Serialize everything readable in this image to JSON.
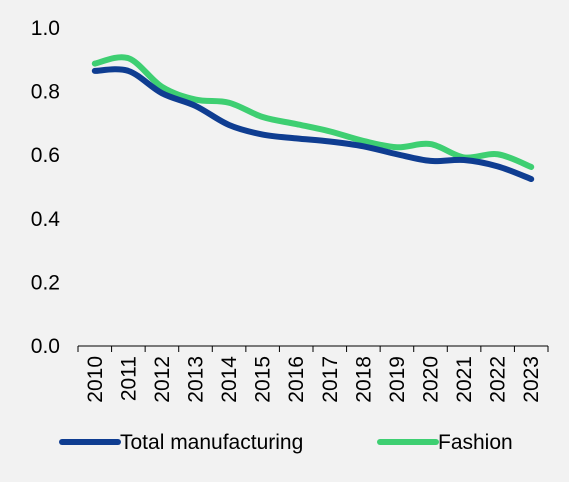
{
  "chart_data": {
    "type": "line",
    "title": "",
    "xlabel": "",
    "ylabel": "",
    "x": [
      "2010",
      "2011",
      "2012",
      "2013",
      "2014",
      "2015",
      "2016",
      "2017",
      "2018",
      "2019",
      "2020",
      "2021",
      "2022",
      "2023"
    ],
    "ylim": [
      0.0,
      1.0
    ],
    "yticks": [
      "0.0",
      "0.2",
      "0.4",
      "0.6",
      "0.8",
      "1.0"
    ],
    "grid": false,
    "legend_position": "bottom",
    "series": [
      {
        "name": "Total manufacturing",
        "color": "#0f3d91",
        "values": [
          0.865,
          0.865,
          0.795,
          0.755,
          0.695,
          0.665,
          0.653,
          0.643,
          0.628,
          0.603,
          0.582,
          0.585,
          0.565,
          0.525
        ]
      },
      {
        "name": "Fashion",
        "color": "#3ecf72",
        "values": [
          0.888,
          0.905,
          0.815,
          0.775,
          0.765,
          0.72,
          0.698,
          0.675,
          0.645,
          0.625,
          0.635,
          0.593,
          0.603,
          0.563
        ]
      }
    ]
  }
}
